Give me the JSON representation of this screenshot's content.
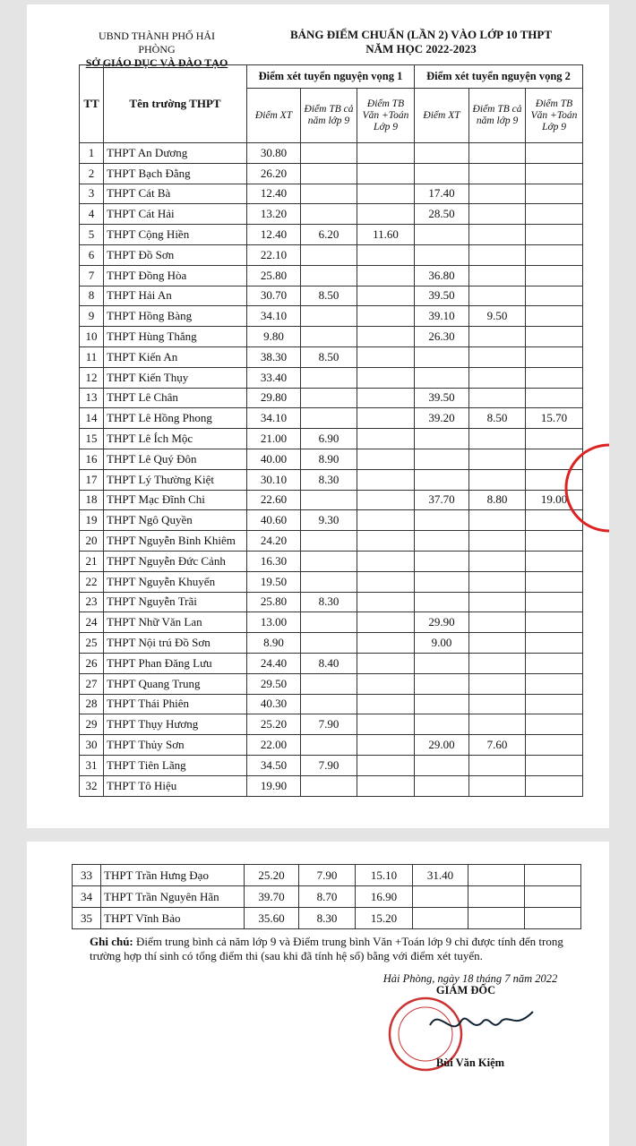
{
  "header": {
    "left": [
      "UBND THÀNH PHỐ HẢI PHÒNG",
      "SỞ GIÁO DỤC VÀ ĐÀO TẠO"
    ],
    "right": [
      "BẢNG ĐIỂM CHUẨN (LẦN 2) VÀO LỚP 10 THPT",
      "NĂM HỌC 2022-2023"
    ]
  },
  "table": {
    "columns": [
      "TT",
      "Tên trường THPT"
    ],
    "group_headers": [
      "Điểm xét tuyển nguyện vọng 1",
      "Điểm xét tuyển nguyện vọng 2"
    ],
    "sub_headers": [
      "Điểm XT",
      "Điểm TB cả năm lớp 9",
      "Điểm TB Văn +Toán Lớp 9",
      "Điểm XT",
      "Điểm TB cả năm lớp 9",
      "Điểm TB Văn +Toán Lớp 9"
    ],
    "rows": [
      [
        "1",
        "THPT An Dương",
        "30.80",
        null,
        null,
        null,
        null,
        null
      ],
      [
        "2",
        "THPT Bạch Đằng",
        "26.20",
        null,
        null,
        null,
        null,
        null
      ],
      [
        "3",
        "THPT Cát Bà",
        "12.40",
        null,
        null,
        "17.40",
        null,
        null
      ],
      [
        "4",
        "THPT Cát Hải",
        "13.20",
        null,
        null,
        "28.50",
        null,
        null
      ],
      [
        "5",
        "THPT Cộng Hiền",
        "12.40",
        "6.20",
        "11.60",
        null,
        null,
        null
      ],
      [
        "6",
        "THPT Đồ Sơn",
        "22.10",
        null,
        null,
        null,
        null,
        null
      ],
      [
        "7",
        "THPT Đồng Hòa",
        "25.80",
        null,
        null,
        "36.80",
        null,
        null
      ],
      [
        "8",
        "THPT Hải An",
        "30.70",
        "8.50",
        null,
        "39.50",
        null,
        null
      ],
      [
        "9",
        "THPT Hồng Bàng",
        "34.10",
        null,
        null,
        "39.10",
        "9.50",
        null
      ],
      [
        "10",
        "THPT Hùng Thắng",
        "9.80",
        null,
        null,
        "26.30",
        null,
        null
      ],
      [
        "11",
        "THPT Kiến An",
        "38.30",
        "8.50",
        null,
        null,
        null,
        null
      ],
      [
        "12",
        "THPT Kiến Thụy",
        "33.40",
        null,
        null,
        null,
        null,
        null
      ],
      [
        "13",
        "THPT Lê Chân",
        "29.80",
        null,
        null,
        "39.50",
        null,
        null
      ],
      [
        "14",
        "THPT Lê Hồng Phong",
        "34.10",
        null,
        null,
        "39.20",
        "8.50",
        "15.70"
      ],
      [
        "15",
        "THPT Lê Ích Mộc",
        "21.00",
        "6.90",
        null,
        null,
        null,
        null
      ],
      [
        "16",
        "THPT Lê Quý Đôn",
        "40.00",
        "8.90",
        null,
        null,
        null,
        null
      ],
      [
        "17",
        "THPT Lý Thường Kiệt",
        "30.10",
        "8.30",
        null,
        null,
        null,
        null
      ],
      [
        "18",
        "THPT Mạc Đĩnh Chi",
        "22.60",
        null,
        null,
        "37.70",
        "8.80",
        "19.00"
      ],
      [
        "19",
        "THPT Ngô Quyền",
        "40.60",
        "9.30",
        null,
        null,
        null,
        null
      ],
      [
        "20",
        "THPT Nguyễn Bỉnh Khiêm",
        "24.20",
        null,
        null,
        null,
        null,
        null
      ],
      [
        "21",
        "THPT Nguyễn Đức Cảnh",
        "16.30",
        null,
        null,
        null,
        null,
        null
      ],
      [
        "22",
        "THPT Nguyễn Khuyến",
        "19.50",
        null,
        null,
        null,
        null,
        null
      ],
      [
        "23",
        "THPT Nguyễn Trãi",
        "25.80",
        "8.30",
        null,
        null,
        null,
        null
      ],
      [
        "24",
        "THPT Nhữ Văn Lan",
        "13.00",
        null,
        null,
        "29.90",
        null,
        null
      ],
      [
        "25",
        "THPT Nội trú Đồ Sơn",
        "8.90",
        null,
        null,
        "9.00",
        null,
        null
      ],
      [
        "26",
        "THPT Phan Đăng Lưu",
        "24.40",
        "8.40",
        null,
        null,
        null,
        null
      ],
      [
        "27",
        "THPT Quang Trung",
        "29.50",
        null,
        null,
        null,
        null,
        null
      ],
      [
        "28",
        "THPT Thái Phiên",
        "40.30",
        null,
        null,
        null,
        null,
        null
      ],
      [
        "29",
        "THPT Thụy Hương",
        "25.20",
        "7.90",
        null,
        null,
        null,
        null
      ],
      [
        "30",
        "THPT Thủy Sơn",
        "22.00",
        null,
        null,
        "29.00",
        "7.60",
        null
      ],
      [
        "31",
        "THPT Tiên Lãng",
        "34.50",
        "7.90",
        null,
        null,
        null,
        null
      ],
      [
        "32",
        "THPT Tô Hiệu",
        "19.90",
        null,
        null,
        null,
        null,
        null
      ]
    ]
  },
  "table_continued": {
    "rows": [
      [
        "33",
        "THPT Trần Hưng Đạo",
        "25.20",
        "7.90",
        "15.10",
        "31.40",
        null,
        null
      ],
      [
        "34",
        "THPT Trần Nguyên Hãn",
        "39.70",
        "8.70",
        "16.90",
        null,
        null,
        null
      ],
      [
        "35",
        "THPT Vĩnh Bảo",
        "35.60",
        "8.30",
        "15.20",
        null,
        null,
        null
      ]
    ]
  },
  "note": {
    "label": "Ghi chú:",
    "text": "Điểm trung bình cả năm lớp 9 và Điểm trung bình Văn +Toán lớp 9 chỉ được tính đến trong trường hợp thí sinh có tổng điểm thi (sau khi đã tính hệ số) bằng với điểm xét tuyển."
  },
  "signature": {
    "place_date": "Hải Phòng, ngày 18 tháng 7 năm 2022",
    "title": "GIÁM ĐỐC",
    "name": "Bùi Văn Kiệm"
  }
}
